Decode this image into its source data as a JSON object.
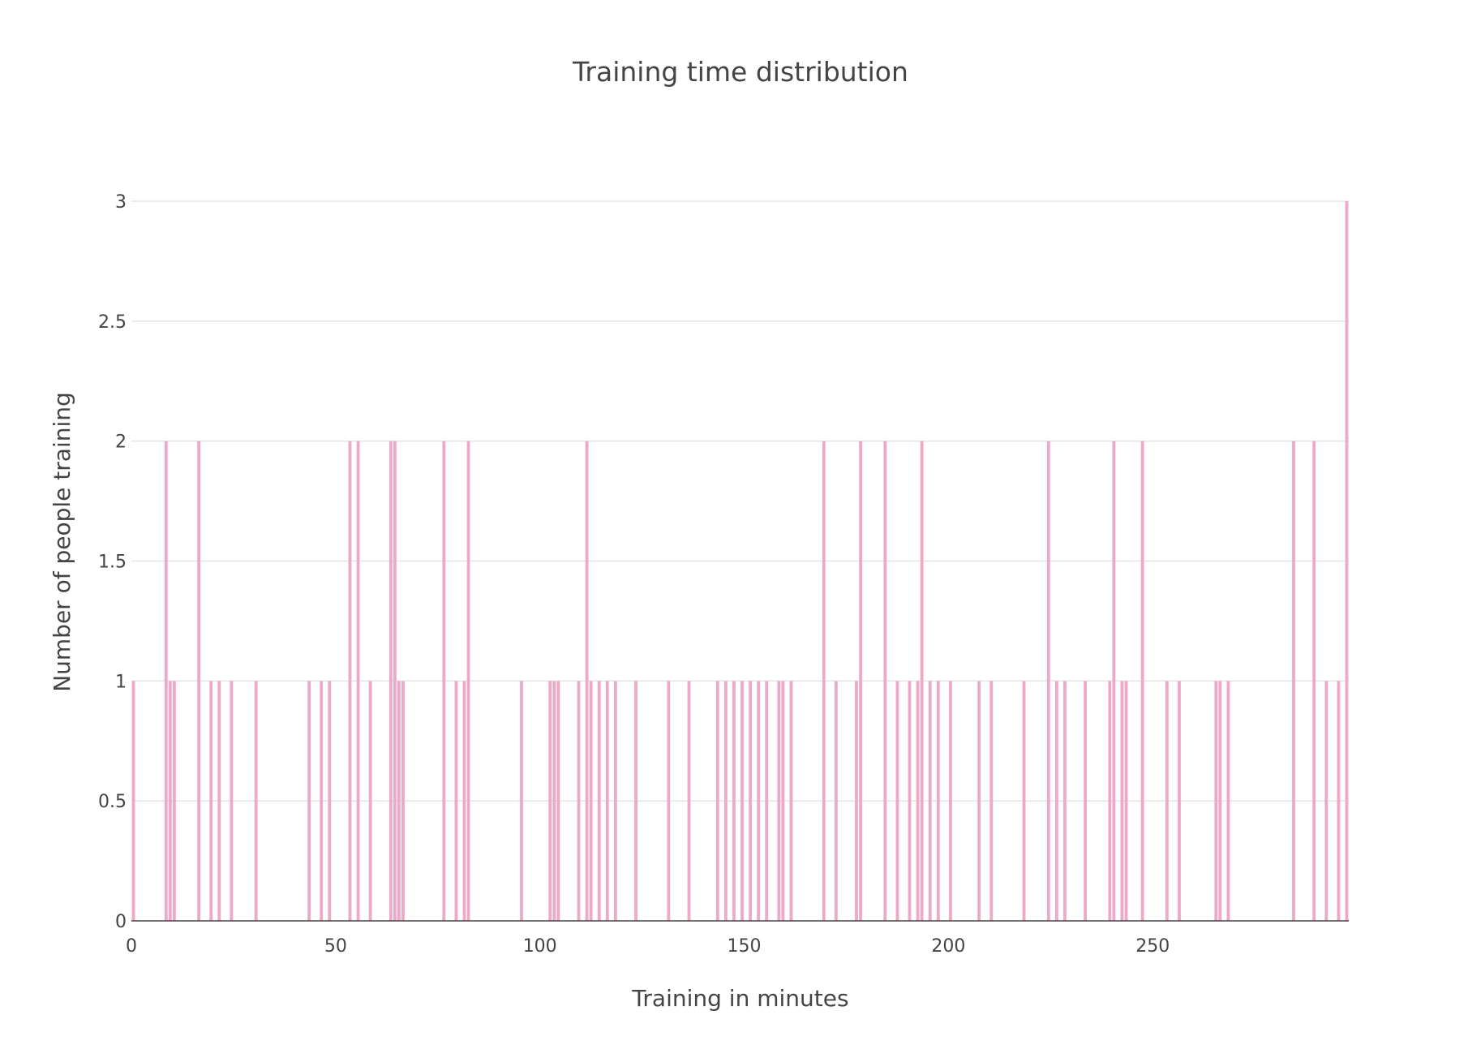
{
  "chart_data": {
    "type": "bar",
    "title": "Training time distribution",
    "xlabel": "Training in minutes",
    "ylabel": "Number of people training",
    "xlim": [
      0,
      298
    ],
    "ylim": [
      0,
      3
    ],
    "x_ticks": [
      "0",
      "50",
      "100",
      "150",
      "200",
      "250"
    ],
    "x_tick_values": [
      0,
      50,
      100,
      150,
      200,
      250
    ],
    "y_ticks": [
      "0",
      "0.5",
      "1",
      "1.5",
      "2",
      "2.5",
      "3"
    ],
    "y_tick_values": [
      0,
      0.5,
      1,
      1.5,
      2,
      2.5,
      3
    ],
    "grid": true,
    "bar_color": "#eea9c9",
    "gridline_color": "#e6e6e6",
    "text_color": "#444444",
    "bins": [
      {
        "x": 0,
        "y": 1
      },
      {
        "x": 8,
        "y": 2
      },
      {
        "x": 9,
        "y": 1
      },
      {
        "x": 10,
        "y": 1
      },
      {
        "x": 16,
        "y": 2
      },
      {
        "x": 19,
        "y": 1
      },
      {
        "x": 21,
        "y": 1
      },
      {
        "x": 24,
        "y": 1
      },
      {
        "x": 30,
        "y": 1
      },
      {
        "x": 43,
        "y": 1
      },
      {
        "x": 46,
        "y": 1
      },
      {
        "x": 48,
        "y": 1
      },
      {
        "x": 53,
        "y": 2
      },
      {
        "x": 55,
        "y": 2
      },
      {
        "x": 58,
        "y": 1
      },
      {
        "x": 63,
        "y": 2
      },
      {
        "x": 64,
        "y": 2
      },
      {
        "x": 65,
        "y": 1
      },
      {
        "x": 66,
        "y": 1
      },
      {
        "x": 76,
        "y": 2
      },
      {
        "x": 79,
        "y": 1
      },
      {
        "x": 81,
        "y": 1
      },
      {
        "x": 82,
        "y": 2
      },
      {
        "x": 95,
        "y": 1
      },
      {
        "x": 102,
        "y": 1
      },
      {
        "x": 103,
        "y": 1
      },
      {
        "x": 104,
        "y": 1
      },
      {
        "x": 109,
        "y": 1
      },
      {
        "x": 111,
        "y": 2
      },
      {
        "x": 112,
        "y": 1
      },
      {
        "x": 114,
        "y": 1
      },
      {
        "x": 116,
        "y": 1
      },
      {
        "x": 118,
        "y": 1
      },
      {
        "x": 123,
        "y": 1
      },
      {
        "x": 131,
        "y": 1
      },
      {
        "x": 136,
        "y": 1
      },
      {
        "x": 143,
        "y": 1
      },
      {
        "x": 145,
        "y": 1
      },
      {
        "x": 147,
        "y": 1
      },
      {
        "x": 149,
        "y": 1
      },
      {
        "x": 151,
        "y": 1
      },
      {
        "x": 153,
        "y": 1
      },
      {
        "x": 155,
        "y": 1
      },
      {
        "x": 158,
        "y": 1
      },
      {
        "x": 159,
        "y": 1
      },
      {
        "x": 161,
        "y": 1
      },
      {
        "x": 169,
        "y": 2
      },
      {
        "x": 172,
        "y": 1
      },
      {
        "x": 177,
        "y": 1
      },
      {
        "x": 178,
        "y": 2
      },
      {
        "x": 184,
        "y": 2
      },
      {
        "x": 187,
        "y": 1
      },
      {
        "x": 190,
        "y": 1
      },
      {
        "x": 192,
        "y": 1
      },
      {
        "x": 193,
        "y": 2
      },
      {
        "x": 195,
        "y": 1
      },
      {
        "x": 197,
        "y": 1
      },
      {
        "x": 200,
        "y": 1
      },
      {
        "x": 207,
        "y": 1
      },
      {
        "x": 210,
        "y": 1
      },
      {
        "x": 218,
        "y": 1
      },
      {
        "x": 224,
        "y": 2
      },
      {
        "x": 226,
        "y": 1
      },
      {
        "x": 228,
        "y": 1
      },
      {
        "x": 233,
        "y": 1
      },
      {
        "x": 239,
        "y": 1
      },
      {
        "x": 240,
        "y": 2
      },
      {
        "x": 242,
        "y": 1
      },
      {
        "x": 243,
        "y": 1
      },
      {
        "x": 247,
        "y": 2
      },
      {
        "x": 253,
        "y": 1
      },
      {
        "x": 256,
        "y": 1
      },
      {
        "x": 265,
        "y": 1
      },
      {
        "x": 266,
        "y": 1
      },
      {
        "x": 268,
        "y": 1
      },
      {
        "x": 284,
        "y": 2
      },
      {
        "x": 289,
        "y": 2
      },
      {
        "x": 292,
        "y": 1
      },
      {
        "x": 295,
        "y": 1
      },
      {
        "x": 297,
        "y": 3
      }
    ]
  }
}
